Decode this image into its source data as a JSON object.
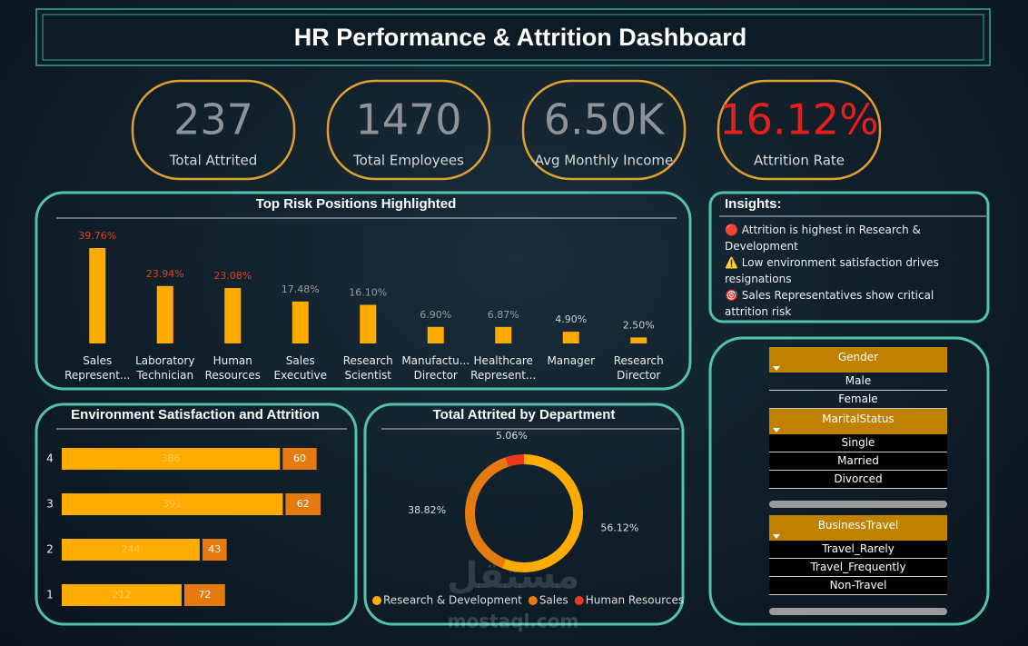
{
  "header": {
    "title": "HR Performance & Attrition Dashboard"
  },
  "kpis": [
    {
      "value": "237",
      "label": "Total Attrited",
      "color": "#8f9397"
    },
    {
      "value": "1470",
      "label": "Total Employees",
      "color": "#8f9397"
    },
    {
      "value": "6.50K",
      "label": "Avg Monthly Income",
      "color": "#8f9397"
    },
    {
      "value": "16.12%",
      "label": "Attrition Rate",
      "color": "#e3201b"
    }
  ],
  "chart_data": [
    {
      "type": "bar",
      "title": "Top Risk Positions Highlighted",
      "categories": [
        "Sales Represent...",
        "Laboratory Technician",
        "Human Resources",
        "Sales Executive",
        "Research Scientist",
        "Manufactu... Director",
        "Healthcare Represent...",
        "Manager",
        "Research Director"
      ],
      "values": [
        39.76,
        23.94,
        23.08,
        17.48,
        16.1,
        6.9,
        6.87,
        4.9,
        2.5
      ],
      "value_labels": [
        "39.76%",
        "23.94%",
        "23.08%",
        "17.48%",
        "16.10%",
        "6.90%",
        "6.87%",
        "4.90%",
        "2.50%"
      ],
      "label_colors": [
        "#e0401c",
        "#e0401c",
        "#e0401c",
        "#9a9a9a",
        "#9a9a9a",
        "#9a9a9a",
        "#9a9a9a",
        "#cfcfcf",
        "#cfcfcf"
      ],
      "color": "#ffab00"
    },
    {
      "type": "hbar",
      "title": "Environment Satisfaction and Attrition",
      "stacked": true,
      "categories": [
        "4",
        "3",
        "2",
        "1"
      ],
      "series": [
        {
          "color": "#ffab00",
          "values": [
            386,
            391,
            244,
            212
          ]
        },
        {
          "color": "#e57b10",
          "values": [
            60,
            62,
            43,
            72
          ]
        }
      ]
    },
    {
      "type": "donut",
      "title": "Total Attrited by Department",
      "categories": [
        "Research & Development",
        "Sales",
        "Human Resources"
      ],
      "values": [
        56.12,
        38.82,
        5.06
      ],
      "value_labels": [
        "56.12%",
        "38.82%",
        "5.06%"
      ],
      "colors": [
        "#ffab00",
        "#e57b10",
        "#e8391c"
      ]
    }
  ],
  "insights": {
    "title": "Insights:",
    "items": [
      "🔴 Attrition is highest in Research & Development",
      "⚠️ Low environment satisfaction drives resignations",
      "🎯 Sales Representatives show critical attrition risk"
    ]
  },
  "slicers": [
    {
      "title": "Gender",
      "options": [
        "Male",
        "Female"
      ]
    },
    {
      "title": "MaritalStatus",
      "options": [
        "Single",
        "Married",
        "Divorced"
      ]
    },
    {
      "title": "BusinessTravel",
      "options": [
        "Travel_Rarely",
        "Travel_Frequently",
        "Non-Travel"
      ]
    }
  ],
  "watermark": {
    "arabic": "مستقل",
    "latin": "mostaql.com"
  }
}
